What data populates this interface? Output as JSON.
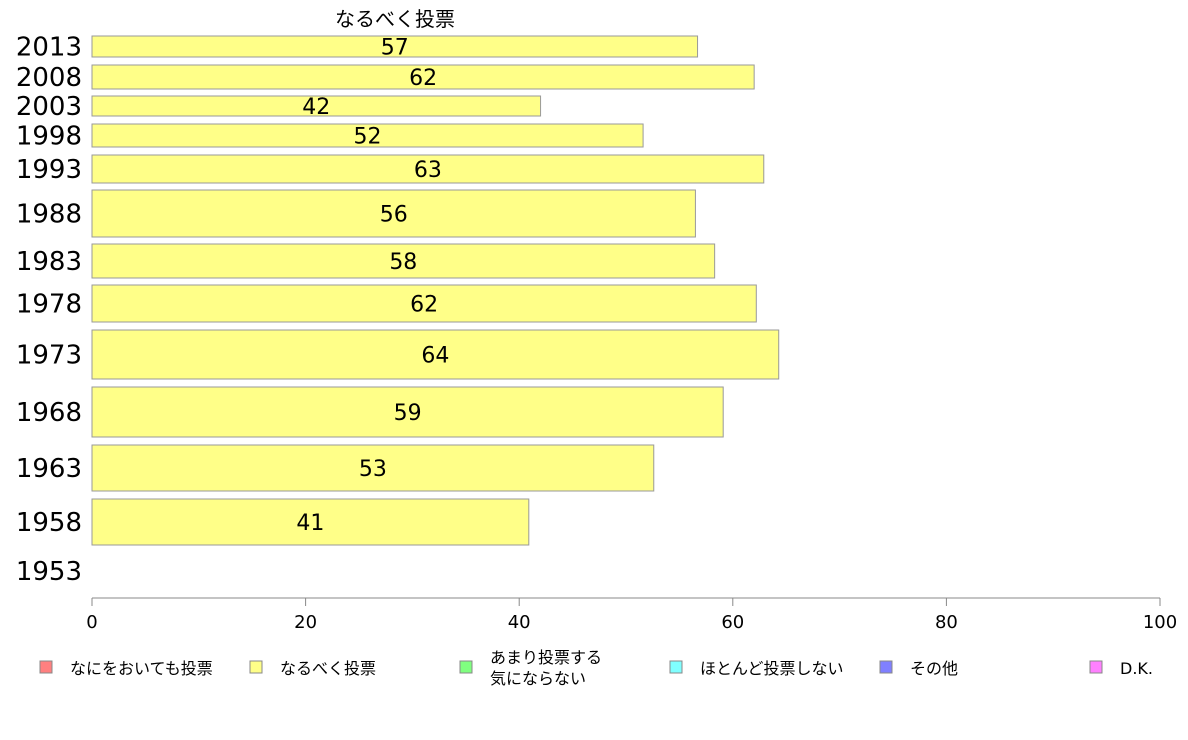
{
  "chart_data": {
    "type": "bar",
    "orientation": "horizontal",
    "title": "なるべく投票",
    "categories": [
      "2013",
      "2008",
      "2003",
      "1998",
      "1993",
      "1988",
      "1983",
      "1978",
      "1973",
      "1968",
      "1963",
      "1958",
      "1953"
    ],
    "values": [
      56.7,
      62.0,
      42.0,
      51.6,
      62.9,
      56.5,
      58.3,
      62.2,
      64.3,
      59.1,
      52.6,
      40.9,
      null
    ],
    "data_labels": [
      "57",
      "62",
      "42",
      "52",
      "63",
      "56",
      "58",
      "62",
      "64",
      "59",
      "53",
      "41",
      ""
    ],
    "xlim": [
      0,
      100
    ],
    "xticks": [
      "0",
      "20",
      "40",
      "60",
      "80",
      "100"
    ],
    "xlabel": "",
    "ylabel": "",
    "grid": false,
    "bar_color": "#FFFF88",
    "legend": {
      "placement": "bottom",
      "items": [
        {
          "label": "なにをおいても投票",
          "color": "#FF8080"
        },
        {
          "label": "なるべく投票",
          "color": "#FFFF88"
        },
        {
          "label": "あまり投票する\n気にならない",
          "color": "#80FF80"
        },
        {
          "label": "ほとんど投票しない",
          "color": "#80FFFF"
        },
        {
          "label": "その他",
          "color": "#8080FF"
        },
        {
          "label": "D.K.",
          "color": "#FF80FF"
        }
      ]
    }
  }
}
